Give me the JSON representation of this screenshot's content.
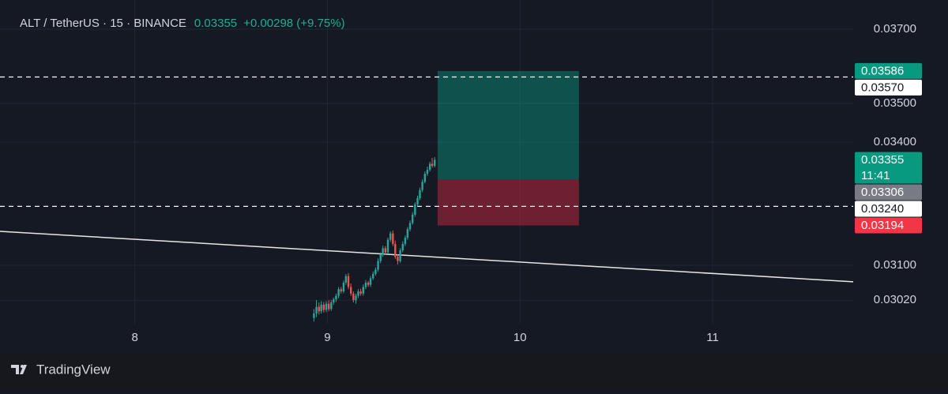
{
  "chart_data": {
    "type": "candlestick",
    "title": "ALT / TetherUS · 15 · BINANCE",
    "last": {
      "value": 0.03355,
      "label": "0.03355"
    },
    "change": "+0.00298 (+9.75%)",
    "countdown": "11:41",
    "brand": "TradingView",
    "log_scale": true,
    "grid": true,
    "up_color": "#26a69a",
    "down_color": "#ef5350",
    "xlim": [
      7.3,
      11.73
    ],
    "xticks": [
      8,
      9,
      10,
      11
    ],
    "ylim": [
      0.02915,
      0.03782
    ],
    "yticks": [
      {
        "value": 0.037,
        "label": "0.03700"
      },
      {
        "value": 0.035,
        "label": "0.03500"
      },
      {
        "value": 0.034,
        "label": "0.03400"
      },
      {
        "value": 0.031,
        "label": "0.03100"
      },
      {
        "value": 0.0302,
        "label": "0.03020"
      }
    ],
    "x": [
      8.93,
      8.943,
      8.956,
      8.968,
      8.981,
      8.994,
      9.007,
      9.02,
      9.032,
      9.045,
      9.058,
      9.071,
      9.084,
      9.096,
      9.109,
      9.122,
      9.135,
      9.148,
      9.16,
      9.173,
      9.186,
      9.199,
      9.212,
      9.224,
      9.237,
      9.25,
      9.263,
      9.276,
      9.288,
      9.301,
      9.314,
      9.327,
      9.34,
      9.352,
      9.365,
      9.378,
      9.391,
      9.404,
      9.416,
      9.429,
      9.442,
      9.455,
      9.468,
      9.48,
      9.493,
      9.506,
      9.519,
      9.532,
      9.544,
      9.557
    ],
    "open": [
      0.0298,
      0.0299,
      0.03005,
      0.02995,
      0.0301,
      0.02998,
      0.03012,
      0.03,
      0.03015,
      0.03022,
      0.0303,
      0.03045,
      0.0304,
      0.0306,
      0.03075,
      0.0305,
      0.03035,
      0.0302,
      0.0303,
      0.0304,
      0.03035,
      0.0305,
      0.0306,
      0.03055,
      0.0307,
      0.0308,
      0.0309,
      0.0311,
      0.03125,
      0.0314,
      0.0313,
      0.0316,
      0.03175,
      0.0315,
      0.0312,
      0.0311,
      0.03135,
      0.0315,
      0.03165,
      0.03185,
      0.032,
      0.0322,
      0.03245,
      0.0326,
      0.0328,
      0.033,
      0.0332,
      0.0333,
      0.03345,
      0.0334
    ],
    "high": [
      0.03,
      0.0302,
      0.03015,
      0.03018,
      0.03016,
      0.03018,
      0.0302,
      0.0302,
      0.03026,
      0.03035,
      0.0305,
      0.0305,
      0.03065,
      0.0308,
      0.03082,
      0.03058,
      0.0304,
      0.03035,
      0.03045,
      0.03046,
      0.03056,
      0.03066,
      0.03064,
      0.03075,
      0.03086,
      0.03095,
      0.03116,
      0.0313,
      0.03146,
      0.03145,
      0.03165,
      0.0318,
      0.03182,
      0.03158,
      0.03126,
      0.0314,
      0.03156,
      0.0317,
      0.0319,
      0.03206,
      0.03226,
      0.0325,
      0.03266,
      0.03286,
      0.03306,
      0.03326,
      0.03338,
      0.0335,
      0.0336,
      0.03362
    ],
    "low": [
      0.02972,
      0.02982,
      0.02988,
      0.0299,
      0.02992,
      0.02993,
      0.02995,
      0.02996,
      0.0301,
      0.03016,
      0.03025,
      0.03035,
      0.03036,
      0.03055,
      0.03045,
      0.0303,
      0.03015,
      0.03012,
      0.03025,
      0.0303,
      0.0303,
      0.03045,
      0.0305,
      0.0305,
      0.03066,
      0.03076,
      0.03086,
      0.03105,
      0.0312,
      0.03124,
      0.03126,
      0.03155,
      0.03145,
      0.03115,
      0.03102,
      0.03106,
      0.0313,
      0.03145,
      0.0316,
      0.0318,
      0.03196,
      0.03215,
      0.0324,
      0.03255,
      0.03275,
      0.03296,
      0.03315,
      0.03326,
      0.03335,
      0.03336
    ],
    "close": [
      0.0299,
      0.03005,
      0.02995,
      0.0301,
      0.02998,
      0.03012,
      0.03,
      0.03015,
      0.03022,
      0.0303,
      0.03045,
      0.0304,
      0.0306,
      0.03075,
      0.0305,
      0.03035,
      0.0302,
      0.0303,
      0.0304,
      0.03035,
      0.0305,
      0.0306,
      0.03055,
      0.0307,
      0.0308,
      0.0309,
      0.0311,
      0.03125,
      0.0314,
      0.0313,
      0.0316,
      0.03175,
      0.0315,
      0.0312,
      0.0311,
      0.03135,
      0.0315,
      0.03165,
      0.03185,
      0.032,
      0.0322,
      0.03245,
      0.0326,
      0.0328,
      0.033,
      0.0332,
      0.0333,
      0.03345,
      0.0334,
      0.03355
    ],
    "hlines": [
      {
        "value": 0.0357,
        "label": "0.03570"
      },
      {
        "value": 0.0324,
        "label": "0.03240"
      }
    ],
    "trendline": {
      "x": [
        7.3,
        11.73
      ],
      "y": [
        0.0318,
        0.03062
      ]
    },
    "position": {
      "x": [
        9.572,
        10.306
      ],
      "target": {
        "value": 0.03586,
        "label": "0.03586"
      },
      "entry": {
        "value": 0.03306,
        "label": "0.03306"
      },
      "stop": {
        "value": 0.03194,
        "label": "0.03194"
      }
    }
  }
}
